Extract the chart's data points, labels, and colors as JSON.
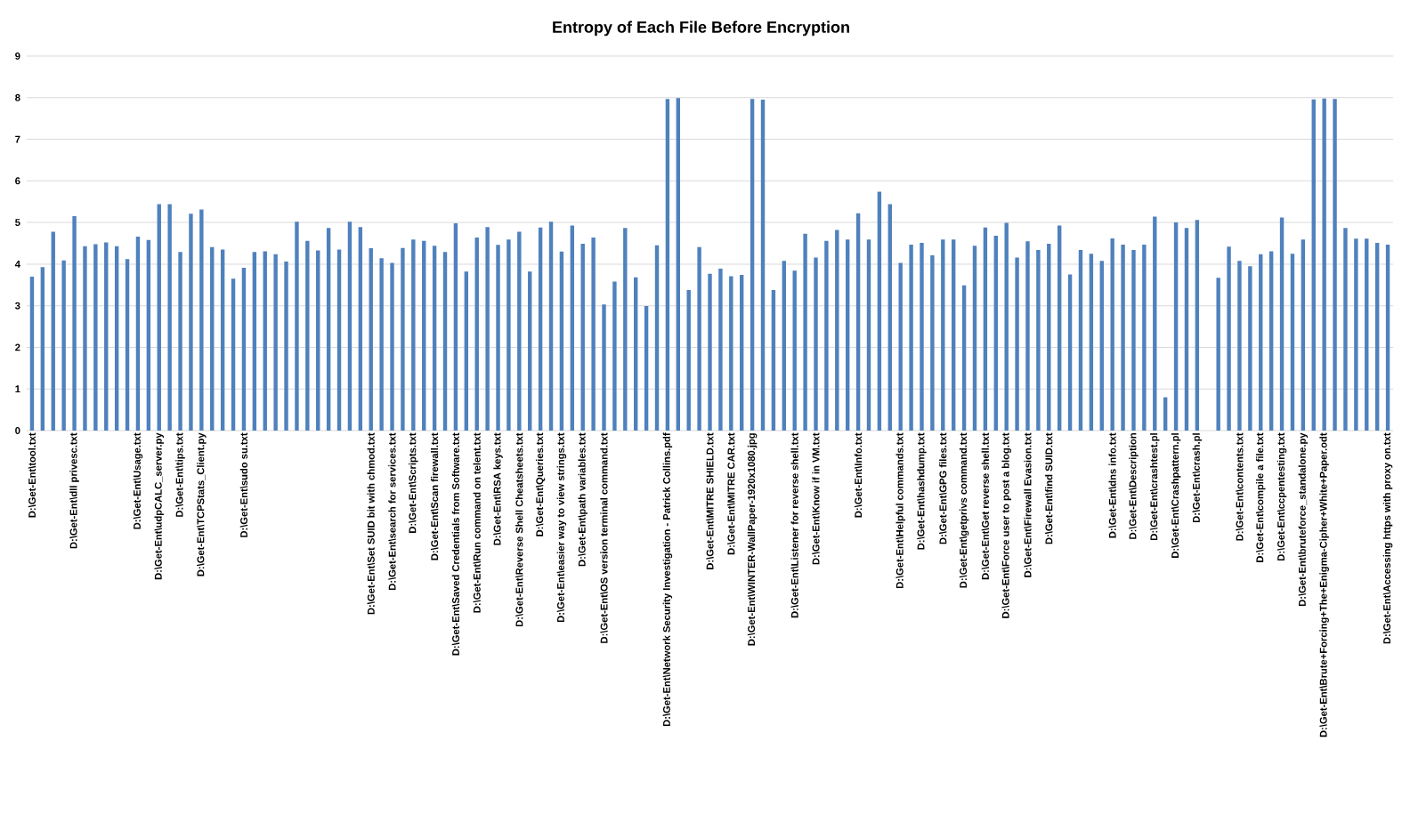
{
  "chart_data": {
    "type": "bar",
    "title": "Entropy of Each File Before Encryption",
    "categories": [
      "D:\\Get-Ent\\tool.txt",
      null,
      null,
      null,
      "D:\\Get-Ent\\dll privesc.txt",
      null,
      null,
      null,
      null,
      null,
      "D:\\Get-Ent\\Usage.txt",
      null,
      "D:\\Get-Ent\\udpCALC_server.py",
      null,
      "D:\\Get-Ent\\tips.txt",
      null,
      "D:\\Get-Ent\\TCPStats_Client.py",
      null,
      null,
      null,
      "D:\\Get-Ent\\sudo su.txt",
      null,
      null,
      null,
      null,
      null,
      null,
      null,
      null,
      null,
      null,
      null,
      "D:\\Get-Ent\\Set SUID bit with chmod.txt",
      null,
      "D:\\Get-Ent\\search for services.txt",
      null,
      "D:\\Get-Ent\\Scripts.txt",
      null,
      "D:\\Get-Ent\\Scan firewall.txt",
      null,
      "D:\\Get-Ent\\Saved Credentials from Software.txt",
      null,
      "D:\\Get-Ent\\Run command on telent.txt",
      null,
      "D:\\Get-Ent\\RSA keys.txt",
      null,
      "D:\\Get-Ent\\Reverse Shell Cheatsheets.txt",
      null,
      "D:\\Get-Ent\\Queries.txt",
      null,
      "D:\\Get-Ent\\easier way to view strings.txt",
      null,
      "D:\\Get-Ent\\path variables.txt",
      null,
      "D:\\Get-Ent\\OS version terminal command.txt",
      null,
      null,
      null,
      null,
      null,
      "D:\\Get-Ent\\Network Security Investigation - Patrick Collins.pdf",
      null,
      null,
      null,
      "D:\\Get-Ent\\MITRE SHIELD.txt",
      null,
      "D:\\Get-Ent\\MITRE CAR.txt",
      null,
      "D:\\Get-Ent\\WINTER-WallPaper-1920x1080.jpg",
      null,
      null,
      null,
      "D:\\Get-Ent\\Listener for reverse shell.txt",
      null,
      "D:\\Get-Ent\\Know if in VM.txt",
      null,
      null,
      null,
      "D:\\Get-Ent\\Info.txt",
      null,
      null,
      null,
      "D:\\Get-Ent\\Helpful commands.txt",
      null,
      "D:\\Get-Ent\\hashdump.txt",
      null,
      "D:\\Get-Ent\\GPG files.txt",
      null,
      "D:\\Get-Ent\\getprivs command.txt",
      null,
      "D:\\Get-Ent\\Get reverse shell.txt",
      null,
      "D:\\Get-Ent\\Force user to post a blog.txt",
      null,
      "D:\\Get-Ent\\Firewall Evasion.txt",
      null,
      "D:\\Get-Ent\\find SUID.txt",
      null,
      null,
      null,
      null,
      null,
      "D:\\Get-Ent\\dns info.txt",
      null,
      "D:\\Get-Ent\\Description",
      null,
      "D:\\Get-Ent\\crashtest.pl",
      null,
      "D:\\Get-Ent\\Crashpattern.pl",
      null,
      "D:\\Get-Ent\\crash.pl",
      null,
      null,
      null,
      "D:\\Get-Ent\\contents.txt",
      null,
      "D:\\Get-Ent\\compile a file.txt",
      null,
      "D:\\Get-Ent\\ccpentesting.txt",
      null,
      "D:\\Get-Ent\\bruteforce_standalone.py",
      null,
      "D:\\Get-Ent\\Brute+Forcing+The+Enigma-Cipher+White+Paper.odt",
      null,
      null,
      null,
      null,
      null,
      "D:\\Get-Ent\\Accessing https with proxy on.txt"
    ],
    "values": [
      3.7,
      3.93,
      4.78,
      4.09,
      5.15,
      4.43,
      4.48,
      4.52,
      4.43,
      4.12,
      4.66,
      4.58,
      5.44,
      5.44,
      4.29,
      5.21,
      5.31,
      4.41,
      4.35,
      3.65,
      3.91,
      4.29,
      4.31,
      4.24,
      4.06,
      5.02,
      4.56,
      4.33,
      4.87,
      4.35,
      5.02,
      4.89,
      4.38,
      4.14,
      4.03,
      4.39,
      4.59,
      4.56,
      4.44,
      4.29,
      4.98,
      3.82,
      4.64,
      4.89,
      4.46,
      4.59,
      4.78,
      3.82,
      4.88,
      5.02,
      4.3,
      4.93,
      4.49,
      4.64,
      3.03,
      3.58,
      4.87,
      3.68,
      2.99,
      4.45,
      7.97,
      7.99,
      3.38,
      4.41,
      3.77,
      3.89,
      3.71,
      3.74,
      7.97,
      7.95,
      3.38,
      4.08,
      3.84,
      4.73,
      4.16,
      4.56,
      4.82,
      4.59,
      5.22,
      4.59,
      5.74,
      5.44,
      4.03,
      4.47,
      4.51,
      4.21,
      4.59,
      4.59,
      3.49,
      4.44,
      4.88,
      4.68,
      4.99,
      4.16,
      4.55,
      4.34,
      4.49,
      4.93,
      3.75,
      4.34,
      4.25,
      4.08,
      4.62,
      4.47,
      4.34,
      4.47,
      5.14,
      0.8,
      5.0,
      4.87,
      5.06,
      0,
      3.67,
      4.42,
      4.08,
      3.95,
      4.24,
      4.31,
      5.12,
      4.25,
      4.59,
      7.96,
      7.98,
      7.97,
      4.87,
      4.61,
      4.61,
      4.51,
      4.47
    ],
    "color": "#4f81bd",
    "ylim": [
      0,
      9
    ],
    "yticks": [
      0,
      1,
      2,
      3,
      4,
      5,
      6,
      7,
      8,
      9
    ],
    "grid": "y"
  }
}
